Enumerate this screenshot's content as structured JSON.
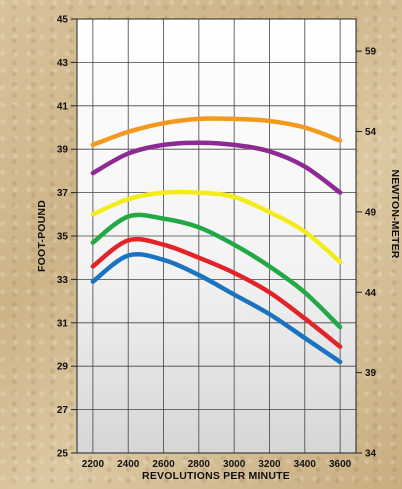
{
  "chart_data": {
    "type": "line",
    "xlabel": "REVOLUTIONS PER MINUTE",
    "ylabel": "FOOT-POUND",
    "y2label": "NEWTON-METER",
    "x_ticks": [
      2200,
      2400,
      2600,
      2800,
      3000,
      3200,
      3400,
      3600
    ],
    "xlim": [
      2110,
      3690
    ],
    "ylim": [
      25,
      45
    ],
    "y_ticks": [
      25,
      27,
      29,
      31,
      33,
      35,
      37,
      39,
      41,
      43,
      45
    ],
    "y2lim": [
      34,
      61
    ],
    "y2_ticks": [
      34,
      39,
      44,
      49,
      54,
      59
    ],
    "grid": true,
    "series": [
      {
        "color": "#f39a1e",
        "x": [
          2200,
          2400,
          2600,
          2800,
          3000,
          3200,
          3400,
          3600
        ],
        "y": [
          39.2,
          39.8,
          40.2,
          40.4,
          40.4,
          40.3,
          40.0,
          39.4
        ]
      },
      {
        "color": "#8e2a93",
        "x": [
          2200,
          2400,
          2600,
          2800,
          3000,
          3200,
          3400,
          3600
        ],
        "y": [
          37.9,
          38.8,
          39.2,
          39.3,
          39.2,
          38.9,
          38.2,
          37.0
        ]
      },
      {
        "color": "#f4ec1a",
        "x": [
          2200,
          2400,
          2600,
          2800,
          3000,
          3200,
          3400,
          3600
        ],
        "y": [
          36.0,
          36.7,
          37.0,
          37.0,
          36.8,
          36.1,
          35.2,
          33.8
        ]
      },
      {
        "color": "#22a845",
        "x": [
          2200,
          2400,
          2600,
          2800,
          3000,
          3200,
          3400,
          3600
        ],
        "y": [
          34.7,
          35.9,
          35.8,
          35.4,
          34.6,
          33.6,
          32.4,
          30.8
        ]
      },
      {
        "color": "#e2232a",
        "x": [
          2200,
          2400,
          2600,
          2800,
          3000,
          3200,
          3400,
          3600
        ],
        "y": [
          33.6,
          34.8,
          34.6,
          34.0,
          33.3,
          32.4,
          31.2,
          29.9
        ]
      },
      {
        "color": "#1a73c0",
        "x": [
          2200,
          2400,
          2600,
          2800,
          3000,
          3200,
          3400,
          3600
        ],
        "y": [
          32.9,
          34.1,
          33.9,
          33.2,
          32.3,
          31.4,
          30.3,
          29.2
        ]
      }
    ]
  }
}
